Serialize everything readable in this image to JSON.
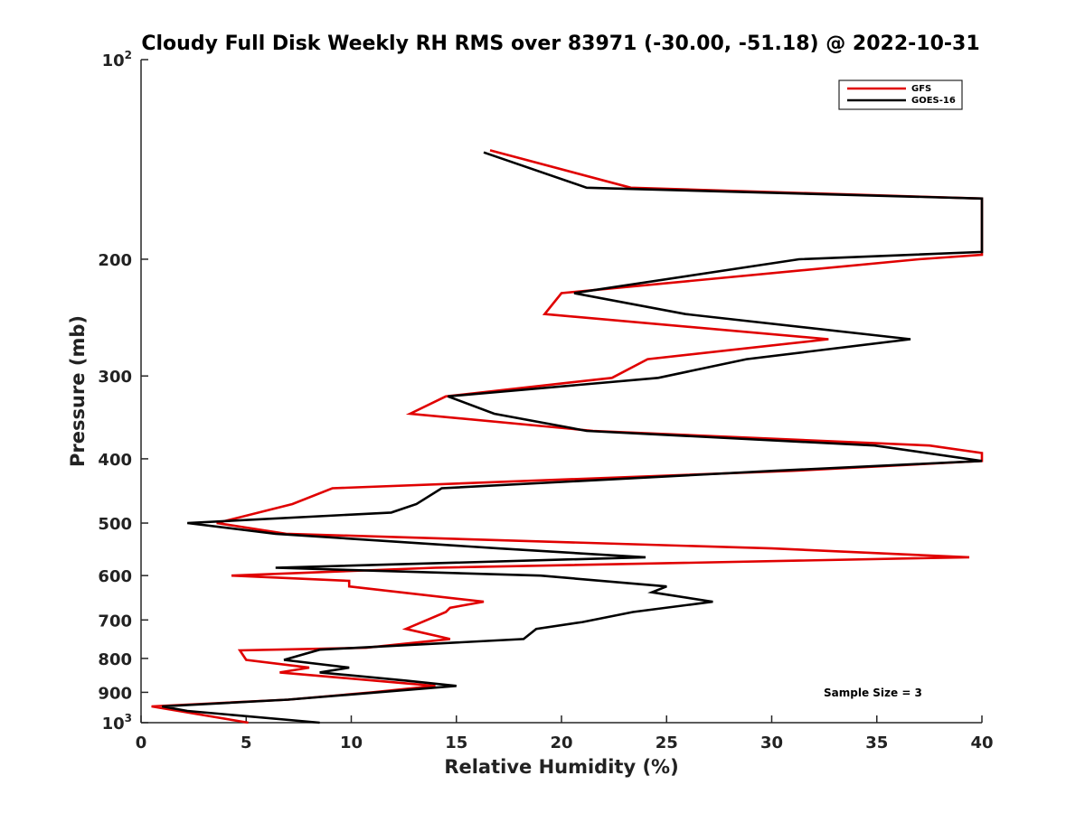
{
  "chart_data": {
    "type": "line",
    "title": "Cloudy Full Disk Weekly RH RMS over 83971 (-30.00, -51.18) @ 2022-10-31",
    "xlabel": "Relative Humidity (%)",
    "ylabel": "Pressure (mb)",
    "xlim": [
      0,
      40
    ],
    "ylim": [
      100,
      1000
    ],
    "yscale": "log",
    "y_reversed": true,
    "grid": false,
    "legend_position": "top-right",
    "x_ticks": [
      0,
      5,
      10,
      15,
      20,
      25,
      30,
      35,
      40
    ],
    "y_ticks": [
      {
        "value": 100,
        "base": "10",
        "exp": "2"
      },
      {
        "value": 200,
        "label": "200"
      },
      {
        "value": 300,
        "label": "300"
      },
      {
        "value": 400,
        "label": "400"
      },
      {
        "value": 500,
        "label": "500"
      },
      {
        "value": 600,
        "label": "600"
      },
      {
        "value": 700,
        "label": "700"
      },
      {
        "value": 800,
        "label": "800"
      },
      {
        "value": 900,
        "label": "900"
      },
      {
        "value": 1000,
        "base": "10",
        "exp": "3"
      }
    ],
    "annotation": "Sample Size = 3",
    "series": [
      {
        "name": "GFS",
        "color": "#e00000",
        "points": [
          [
            16.6,
            137
          ],
          [
            23.3,
            156
          ],
          [
            40.0,
            162
          ],
          [
            40.0,
            197
          ],
          [
            37.0,
            200
          ],
          [
            20.0,
            225
          ],
          [
            19.2,
            242
          ],
          [
            32.7,
            264
          ],
          [
            24.1,
            283
          ],
          [
            22.4,
            302
          ],
          [
            14.5,
            322
          ],
          [
            12.8,
            342
          ],
          [
            21.5,
            363
          ],
          [
            37.5,
            382
          ],
          [
            40.0,
            392
          ],
          [
            40.0,
            403
          ],
          [
            31.0,
            417
          ],
          [
            9.1,
            443
          ],
          [
            7.2,
            468
          ],
          [
            3.6,
            500
          ],
          [
            6.9,
            519
          ],
          [
            30.0,
            546
          ],
          [
            39.4,
            563
          ],
          [
            14.0,
            584
          ],
          [
            4.3,
            600
          ],
          [
            9.9,
            611
          ],
          [
            9.9,
            623
          ],
          [
            16.3,
            657
          ],
          [
            14.7,
            671
          ],
          [
            14.5,
            681
          ],
          [
            12.6,
            722
          ],
          [
            14.7,
            748
          ],
          [
            10.7,
            771
          ],
          [
            4.7,
            778
          ],
          [
            5.0,
            804
          ],
          [
            8.0,
            826
          ],
          [
            6.6,
            840
          ],
          [
            14.0,
            880
          ],
          [
            11.0,
            900
          ],
          [
            7.0,
            923
          ],
          [
            0.5,
            945
          ],
          [
            5.1,
            1000
          ]
        ]
      },
      {
        "name": "GOES-16",
        "color": "#000000",
        "points": [
          [
            16.3,
            138
          ],
          [
            21.2,
            156
          ],
          [
            40.0,
            162
          ],
          [
            40.0,
            195
          ],
          [
            31.3,
            200
          ],
          [
            20.6,
            225
          ],
          [
            25.9,
            242
          ],
          [
            36.6,
            264
          ],
          [
            28.8,
            283
          ],
          [
            24.6,
            302
          ],
          [
            14.6,
            322
          ],
          [
            16.8,
            342
          ],
          [
            21.2,
            363
          ],
          [
            34.9,
            382
          ],
          [
            40.0,
            403
          ],
          [
            30.1,
            417
          ],
          [
            14.3,
            443
          ],
          [
            13.1,
            468
          ],
          [
            11.9,
            482
          ],
          [
            2.2,
            500
          ],
          [
            6.4,
            519
          ],
          [
            17.0,
            546
          ],
          [
            24.0,
            563
          ],
          [
            6.4,
            584
          ],
          [
            19.0,
            600
          ],
          [
            25.0,
            623
          ],
          [
            24.3,
            636
          ],
          [
            27.2,
            657
          ],
          [
            23.4,
            681
          ],
          [
            21.0,
            705
          ],
          [
            18.8,
            722
          ],
          [
            18.2,
            748
          ],
          [
            8.5,
            776
          ],
          [
            6.8,
            804
          ],
          [
            9.9,
            826
          ],
          [
            8.5,
            840
          ],
          [
            12.6,
            864
          ],
          [
            15.0,
            880
          ],
          [
            7.0,
            923
          ],
          [
            1.0,
            945
          ],
          [
            2.2,
            960
          ],
          [
            8.5,
            1000
          ]
        ]
      }
    ]
  }
}
